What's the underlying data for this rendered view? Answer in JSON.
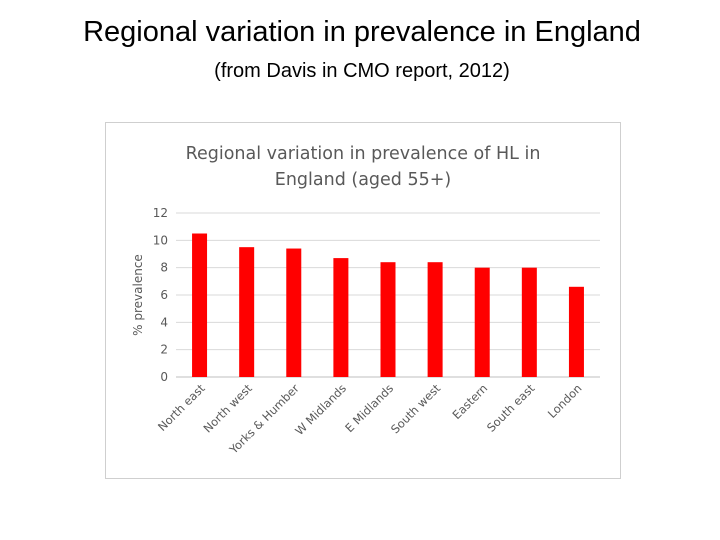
{
  "slide": {
    "title": "Regional variation in prevalence in England",
    "subtitle": "(from Davis in CMO report, 2012)"
  },
  "chart_data": {
    "type": "bar",
    "title_lines": [
      "Regional variation in prevalence of HL in",
      "England (aged 55+)"
    ],
    "categories": [
      "North east",
      "North west",
      "Yorks & Humber",
      "W Midlands",
      "E Midlands",
      "South west",
      "Eastern",
      "South east",
      "London"
    ],
    "values": [
      10.5,
      9.5,
      9.4,
      8.7,
      8.4,
      8.4,
      8.0,
      8.0,
      6.6
    ],
    "ylabel": "% prevalence",
    "xlabel": "",
    "ylim": [
      0,
      12
    ],
    "yticks": [
      0,
      2,
      4,
      6,
      8,
      10,
      12
    ],
    "grid": true,
    "bar_color": "#ff0000",
    "legend": "none"
  }
}
